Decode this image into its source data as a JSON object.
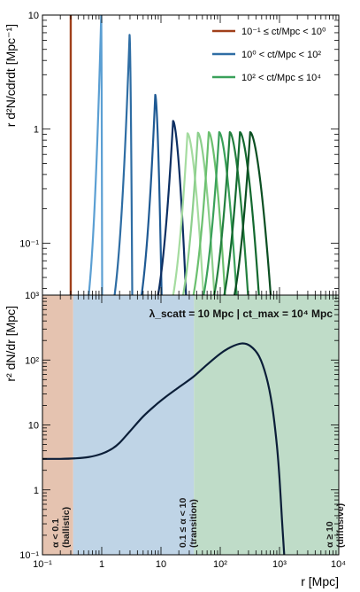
{
  "chart_data": [
    {
      "panel": "top",
      "type": "line",
      "ylabel": "r d²N/cdrdt [Mpc⁻¹]",
      "xscale": "log",
      "yscale": "log",
      "xlim": [
        0.1,
        10000
      ],
      "ylim": [
        0.035,
        10
      ],
      "y_ticklabels": [
        {
          "value": 10,
          "label": "10"
        },
        {
          "value": 1,
          "label": "1"
        },
        {
          "value": 0.1,
          "label": "10⁻¹"
        }
      ],
      "legend": {
        "position": "top-right",
        "entries": [
          {
            "label": "10⁻¹ ≤ ct/Mpc < 10⁰",
            "color": "#a0401a"
          },
          {
            "label": "10⁰ < ct/Mpc < 10²",
            "color": "#2e6da4"
          },
          {
            "label": "10² < ct/Mpc ≤ 10⁴",
            "color": "#3aa15a"
          }
        ]
      },
      "series": [
        {
          "group": "ballistic",
          "color": "#a0401a",
          "kind": "spike",
          "x": 0.3,
          "peak": 10
        },
        {
          "group": "transition",
          "color": "#5b9fd3",
          "kind": "pulse",
          "x_start": 0.42,
          "x_peak": 0.98,
          "x_end": 1.02,
          "peak": 10
        },
        {
          "group": "transition",
          "color": "#2e6da4",
          "kind": "pulse",
          "x_start": 1.05,
          "x_peak": 2.95,
          "x_end": 3.3,
          "peak": 6.7
        },
        {
          "group": "transition",
          "color": "#1f5a94",
          "kind": "pulse",
          "x_start": 2.9,
          "x_peak": 8.0,
          "x_end": 10.5,
          "peak": 2.0
        },
        {
          "group": "transition",
          "color": "#0d2f63",
          "kind": "pulse",
          "x_start": 5.0,
          "x_peak": 16.0,
          "x_end": 28.0,
          "peak": 1.18
        },
        {
          "group": "diffusive",
          "color": "#a5dca0",
          "kind": "pulse",
          "x_start": 9.0,
          "x_peak": 28.0,
          "x_end": 56.0,
          "peak": 0.92
        },
        {
          "group": "diffusive",
          "color": "#8ccf8c",
          "kind": "pulse",
          "x_start": 13.0,
          "x_peak": 42.0,
          "x_end": 86.0,
          "peak": 0.93
        },
        {
          "group": "diffusive",
          "color": "#6bc06f",
          "kind": "pulse",
          "x_start": 19.0,
          "x_peak": 64.0,
          "x_end": 130.0,
          "peak": 0.94
        },
        {
          "group": "diffusive",
          "color": "#3aa15a",
          "kind": "pulse",
          "x_start": 28.0,
          "x_peak": 96.0,
          "x_end": 205.0,
          "peak": 0.94
        },
        {
          "group": "diffusive",
          "color": "#23803f",
          "kind": "pulse",
          "x_start": 42.0,
          "x_peak": 145.0,
          "x_end": 320.0,
          "peak": 0.94
        },
        {
          "group": "diffusive",
          "color": "#13692f",
          "kind": "pulse",
          "x_start": 62.0,
          "x_peak": 215.0,
          "x_end": 490.0,
          "peak": 0.94
        },
        {
          "group": "diffusive",
          "color": "#0b4f22",
          "kind": "pulse",
          "x_start": 92.0,
          "x_peak": 320.0,
          "x_end": 780.0,
          "peak": 0.94
        }
      ]
    },
    {
      "panel": "bottom",
      "type": "line",
      "xlabel": "r [Mpc]",
      "ylabel": "r² dN/dr [Mpc]",
      "xscale": "log",
      "yscale": "log",
      "xlim": [
        0.1,
        10000
      ],
      "ylim": [
        0.1,
        1000
      ],
      "x_ticklabels": [
        {
          "value": 0.1,
          "label": "10⁻¹"
        },
        {
          "value": 1,
          "label": "1"
        },
        {
          "value": 10,
          "label": "10"
        },
        {
          "value": 100,
          "label": "10²"
        },
        {
          "value": 1000,
          "label": "10³"
        },
        {
          "value": 10000,
          "label": "10⁴"
        }
      ],
      "y_ticklabels": [
        {
          "value": 1000,
          "label": "10³"
        },
        {
          "value": 100,
          "label": "10²"
        },
        {
          "value": 10,
          "label": "10"
        },
        {
          "value": 1,
          "label": "1"
        },
        {
          "value": 0.1,
          "label": "10⁻¹"
        }
      ],
      "annotation": "λ_scatt = 10 Mpc | ct_max = 10⁴ Mpc",
      "regions": [
        {
          "label": "α < 0.1",
          "sublabel": "(ballistic)",
          "x_from": 0.1,
          "x_to": 0.33,
          "color": "#e5c3b0"
        },
        {
          "label": "0.1 ≤ α < 10",
          "sublabel": "(transition)",
          "x_from": 0.33,
          "x_to": 36,
          "color": "#bfd4e6"
        },
        {
          "label": "α ≥ 10",
          "sublabel": "(diffusive)",
          "x_from": 36,
          "x_to": 10000,
          "color": "#bfdcc8"
        }
      ],
      "series": [
        {
          "color": "#0b1e38",
          "points": [
            [
              0.1,
              3.0
            ],
            [
              0.2,
              3.0
            ],
            [
              0.35,
              3.05
            ],
            [
              0.6,
              3.2
            ],
            [
              1.0,
              3.6
            ],
            [
              1.5,
              4.3
            ],
            [
              2.0,
              5.3
            ],
            [
              3.0,
              8.0
            ],
            [
              5.0,
              13.5
            ],
            [
              8.0,
              20.0
            ],
            [
              12.0,
              27.0
            ],
            [
              20.0,
              38.0
            ],
            [
              35.0,
              55.0
            ],
            [
              60.0,
              85.0
            ],
            [
              100.0,
              125.0
            ],
            [
              150.0,
              158.0
            ],
            [
              230.0,
              180.0
            ],
            [
              320.0,
              165.0
            ],
            [
              450.0,
              115.0
            ],
            [
              600.0,
              55.0
            ],
            [
              750.0,
              20.0
            ],
            [
              900.0,
              5.0
            ],
            [
              1000.0,
              1.5
            ],
            [
              1100.0,
              0.35
            ],
            [
              1200.0,
              0.1
            ]
          ]
        }
      ]
    }
  ]
}
